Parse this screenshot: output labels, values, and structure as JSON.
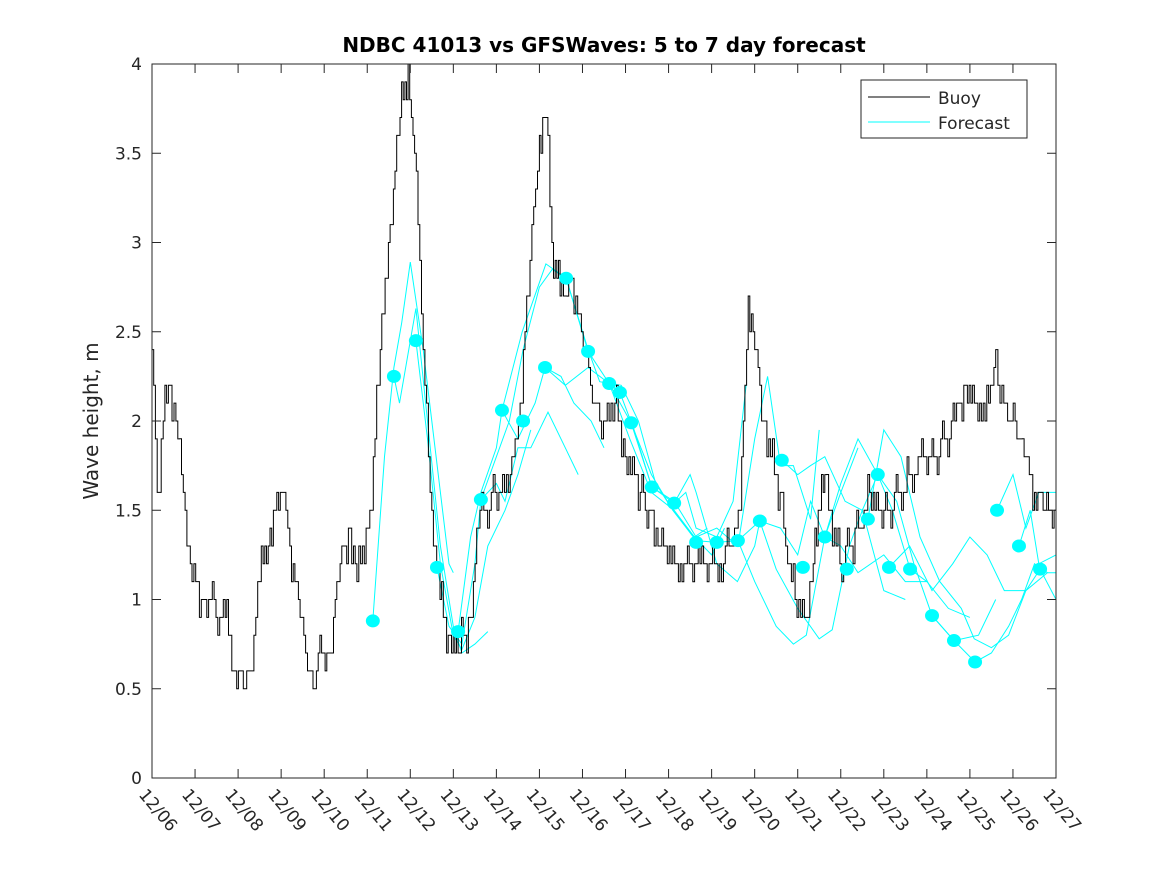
{
  "chart_data": {
    "type": "line",
    "title": "NDBC 41013 vs GFSWaves: 5 to 7 day forecast",
    "xlabel": "",
    "ylabel": "Wave height, m",
    "xlim": [
      0,
      21
    ],
    "ylim": [
      0,
      4
    ],
    "x_units": "days since 12/06",
    "x_tick_values": [
      0,
      1,
      2,
      3,
      4,
      5,
      6,
      7,
      8,
      9,
      10,
      11,
      12,
      13,
      14,
      15,
      16,
      17,
      18,
      19,
      20,
      21
    ],
    "x_tick_labels": [
      "12/06",
      "12/07",
      "12/08",
      "12/09",
      "12/10",
      "12/11",
      "12/12",
      "12/13",
      "12/14",
      "12/15",
      "12/16",
      "12/17",
      "12/18",
      "12/19",
      "12/20",
      "12/21",
      "12/22",
      "12/23",
      "12/24",
      "12/25",
      "12/26",
      "12/27"
    ],
    "y_ticks": [
      0,
      0.5,
      1,
      1.5,
      2,
      2.5,
      3,
      3.5,
      4
    ],
    "y_tick_labels": [
      "0",
      "0.5",
      "1",
      "1.5",
      "2",
      "2.5",
      "3",
      "3.5",
      "4"
    ],
    "grid": false,
    "legend": {
      "placement": "top-right",
      "entries": [
        "Buoy",
        "Forecast"
      ]
    },
    "colors": {
      "buoy": "#000000",
      "forecast": "#00FFFF"
    },
    "buoy": {
      "name": "Buoy",
      "points": [
        [
          0,
          2.37
        ],
        [
          0.12,
          1.6
        ],
        [
          0.26,
          2.0
        ],
        [
          0.42,
          2.2
        ],
        [
          0.6,
          1.9
        ],
        [
          0.77,
          1.5
        ],
        [
          0.93,
          1.1
        ],
        [
          1.23,
          1.0
        ],
        [
          1.7,
          0.9
        ],
        [
          1.93,
          0.6
        ],
        [
          2.16,
          0.5
        ],
        [
          2.28,
          0.6
        ],
        [
          2.5,
          1.1
        ],
        [
          2.74,
          1.4
        ],
        [
          3.02,
          1.6
        ],
        [
          3.2,
          1.3
        ],
        [
          3.44,
          0.9
        ],
        [
          3.74,
          0.5
        ],
        [
          3.86,
          0.7
        ],
        [
          4.14,
          0.7
        ],
        [
          4.37,
          1.2
        ],
        [
          4.6,
          1.4
        ],
        [
          4.76,
          1.1
        ],
        [
          5.06,
          1.45
        ],
        [
          5.3,
          2.4
        ],
        [
          5.53,
          3.1
        ],
        [
          5.76,
          3.7
        ],
        [
          5.95,
          4.0
        ],
        [
          6.1,
          3.45
        ],
        [
          6.22,
          2.9
        ],
        [
          6.34,
          2.2
        ],
        [
          6.5,
          1.45
        ],
        [
          6.69,
          1.0
        ],
        [
          6.92,
          0.77
        ],
        [
          7.15,
          0.72
        ],
        [
          7.39,
          0.9
        ],
        [
          7.62,
          1.45
        ],
        [
          7.97,
          1.6
        ],
        [
          8.32,
          1.67
        ],
        [
          8.55,
          2.1
        ],
        [
          8.78,
          2.85
        ],
        [
          9.0,
          3.6
        ],
        [
          9.15,
          3.7
        ],
        [
          9.29,
          3.0
        ],
        [
          9.48,
          2.7
        ],
        [
          9.76,
          2.8
        ],
        [
          10.06,
          2.35
        ],
        [
          10.4,
          1.95
        ],
        [
          10.75,
          2.1
        ],
        [
          10.99,
          1.8
        ],
        [
          11.34,
          1.6
        ],
        [
          11.62,
          1.45
        ],
        [
          11.8,
          1.3
        ],
        [
          12.27,
          1.2
        ],
        [
          12.73,
          1.15
        ],
        [
          13.19,
          1.2
        ],
        [
          13.66,
          1.45
        ],
        [
          13.85,
          2.7
        ],
        [
          14.0,
          2.4
        ],
        [
          14.24,
          1.95
        ],
        [
          14.59,
          1.55
        ],
        [
          14.94,
          1.0
        ],
        [
          15.24,
          0.87
        ],
        [
          15.4,
          1.35
        ],
        [
          15.63,
          1.65
        ],
        [
          15.98,
          1.2
        ],
        [
          16.33,
          1.35
        ],
        [
          16.67,
          1.6
        ],
        [
          17.0,
          1.45
        ],
        [
          17.37,
          1.6
        ],
        [
          17.84,
          1.75
        ],
        [
          18.2,
          1.8
        ],
        [
          18.65,
          2.0
        ],
        [
          18.9,
          2.2
        ],
        [
          19.35,
          2.0
        ],
        [
          19.6,
          2.4
        ],
        [
          19.7,
          2.1
        ],
        [
          20.05,
          2.0
        ],
        [
          20.3,
          1.75
        ],
        [
          20.5,
          1.6
        ],
        [
          20.74,
          1.5
        ],
        [
          21,
          1.5
        ]
      ]
    },
    "forecast_lines": [
      [
        [
          5.13,
          0.88
        ],
        [
          5.4,
          1.8
        ],
        [
          5.62,
          2.3
        ],
        [
          5.8,
          2.55
        ],
        [
          6.0,
          2.89
        ],
        [
          6.3,
          2.4
        ],
        [
          6.6,
          1.8
        ],
        [
          6.9,
          1.2
        ],
        [
          7.0,
          1.15
        ]
      ],
      [
        [
          5.62,
          2.25
        ],
        [
          5.75,
          2.1
        ],
        [
          6.13,
          2.63
        ],
        [
          6.4,
          2.0
        ],
        [
          6.7,
          1.3
        ],
        [
          7.0,
          0.85
        ],
        [
          7.2,
          0.7
        ],
        [
          7.5,
          0.75
        ],
        [
          7.8,
          0.82
        ]
      ],
      [
        [
          6.13,
          2.45
        ],
        [
          6.4,
          1.9
        ],
        [
          6.7,
          1.2
        ],
        [
          7.0,
          0.8
        ],
        [
          7.2,
          0.72
        ],
        [
          7.5,
          0.9
        ],
        [
          7.8,
          1.3
        ],
        [
          8.2,
          1.5
        ],
        [
          8.5,
          1.7
        ],
        [
          8.8,
          1.95
        ]
      ],
      [
        [
          6.62,
          1.18
        ],
        [
          6.9,
          0.85
        ],
        [
          7.2,
          0.75
        ],
        [
          7.5,
          1.2
        ],
        [
          7.64,
          1.56
        ],
        [
          8.0,
          1.65
        ],
        [
          8.2,
          1.55
        ],
        [
          8.5,
          1.85
        ],
        [
          8.8,
          1.85
        ],
        [
          9.2,
          2.05
        ],
        [
          9.6,
          1.85
        ],
        [
          9.9,
          1.7
        ]
      ],
      [
        [
          7.11,
          0.82
        ],
        [
          7.4,
          1.35
        ],
        [
          7.64,
          1.6
        ],
        [
          8.0,
          1.85
        ],
        [
          8.13,
          2.06
        ],
        [
          8.5,
          1.9
        ],
        [
          8.9,
          2.1
        ],
        [
          9.13,
          2.3
        ],
        [
          9.5,
          2.25
        ],
        [
          9.8,
          2.1
        ],
        [
          10.2,
          2.0
        ],
        [
          10.5,
          1.85
        ]
      ],
      [
        [
          7.64,
          1.56
        ],
        [
          8.0,
          1.8
        ],
        [
          8.3,
          2.0
        ],
        [
          8.62,
          2.4
        ],
        [
          9.0,
          2.75
        ],
        [
          9.3,
          2.85
        ],
        [
          9.62,
          2.8
        ],
        [
          10.13,
          2.4
        ],
        [
          10.4,
          2.22
        ],
        [
          10.9,
          2.2
        ],
        [
          11.3,
          2.0
        ],
        [
          11.7,
          1.65
        ],
        [
          12.1,
          1.5
        ],
        [
          12.6,
          1.35
        ],
        [
          12.9,
          1.4
        ]
      ],
      [
        [
          8.13,
          2.06
        ],
        [
          8.6,
          2.5
        ],
        [
          9.15,
          2.88
        ],
        [
          9.62,
          2.8
        ],
        [
          10.13,
          2.39
        ],
        [
          10.62,
          2.21
        ],
        [
          11.1,
          1.9
        ],
        [
          11.6,
          1.6
        ],
        [
          12.13,
          1.5
        ],
        [
          12.6,
          1.35
        ],
        [
          13.0,
          1.25
        ],
        [
          13.3,
          1.4
        ]
      ],
      [
        [
          9.13,
          2.3
        ],
        [
          9.6,
          2.2
        ],
        [
          10.13,
          2.3
        ],
        [
          10.62,
          2.21
        ],
        [
          11.13,
          1.99
        ],
        [
          11.61,
          1.63
        ],
        [
          12.13,
          1.54
        ],
        [
          12.4,
          1.6
        ],
        [
          12.64,
          1.4
        ],
        [
          13.12,
          1.35
        ],
        [
          13.5,
          1.55
        ],
        [
          13.8,
          2.2
        ]
      ],
      [
        [
          10.62,
          2.21
        ],
        [
          10.87,
          2.16
        ],
        [
          11.2,
          1.95
        ],
        [
          11.61,
          1.63
        ],
        [
          12.13,
          1.55
        ],
        [
          12.64,
          1.35
        ],
        [
          13.12,
          1.4
        ],
        [
          13.61,
          1.3
        ],
        [
          14.0,
          1.9
        ],
        [
          14.3,
          2.25
        ],
        [
          14.6,
          1.75
        ],
        [
          14.9,
          1.75
        ],
        [
          15.3,
          1.45
        ],
        [
          15.5,
          1.95
        ]
      ],
      [
        [
          11.13,
          1.99
        ],
        [
          11.6,
          1.7
        ],
        [
          12.1,
          1.5
        ],
        [
          12.64,
          1.33
        ],
        [
          13.12,
          1.32
        ],
        [
          13.61,
          1.33
        ],
        [
          14.12,
          1.44
        ],
        [
          14.6,
          1.4
        ],
        [
          15.0,
          1.25
        ],
        [
          15.3,
          1.55
        ],
        [
          15.63,
          1.35
        ],
        [
          16.0,
          1.6
        ],
        [
          16.4,
          1.85
        ]
      ],
      [
        [
          12.13,
          1.54
        ],
        [
          12.5,
          1.7
        ],
        [
          12.64,
          1.6
        ],
        [
          13.12,
          1.2
        ],
        [
          13.6,
          1.1
        ],
        [
          14.0,
          1.3
        ],
        [
          14.12,
          1.44
        ],
        [
          14.5,
          1.17
        ],
        [
          15.0,
          0.95
        ],
        [
          15.5,
          0.78
        ],
        [
          15.8,
          0.83
        ],
        [
          16.2,
          1.3
        ],
        [
          16.5,
          1.5
        ],
        [
          17.0,
          1.05
        ],
        [
          17.5,
          1.0
        ]
      ],
      [
        [
          13.61,
          1.33
        ],
        [
          14.0,
          1.1
        ],
        [
          14.5,
          0.85
        ],
        [
          14.9,
          0.75
        ],
        [
          15.2,
          0.8
        ],
        [
          15.63,
          1.35
        ],
        [
          16.0,
          1.3
        ],
        [
          16.4,
          1.15
        ],
        [
          17.0,
          1.25
        ],
        [
          17.5,
          1.1
        ],
        [
          18.0,
          1.1
        ]
      ],
      [
        [
          14.63,
          1.78
        ],
        [
          15.0,
          1.7
        ],
        [
          15.3,
          1.75
        ],
        [
          15.63,
          1.8
        ],
        [
          16.1,
          1.55
        ],
        [
          16.5,
          1.5
        ],
        [
          16.86,
          1.7
        ],
        [
          17.2,
          1.5
        ],
        [
          17.61,
          1.17
        ],
        [
          18.0,
          1.1
        ],
        [
          18.5,
          0.95
        ],
        [
          19.0,
          0.9
        ]
      ],
      [
        [
          15.63,
          1.35
        ],
        [
          16.0,
          1.65
        ],
        [
          16.4,
          1.9
        ],
        [
          16.86,
          1.7
        ],
        [
          17.3,
          1.55
        ],
        [
          17.7,
          1.2
        ],
        [
          18.12,
          0.91
        ],
        [
          18.63,
          0.77
        ],
        [
          19.2,
          0.8
        ],
        [
          19.6,
          1.0
        ]
      ],
      [
        [
          16.63,
          1.45
        ],
        [
          17.0,
          1.95
        ],
        [
          17.4,
          1.8
        ],
        [
          17.84,
          1.35
        ],
        [
          18.3,
          1.1
        ],
        [
          18.8,
          0.95
        ],
        [
          19.1,
          0.78
        ],
        [
          19.5,
          0.73
        ],
        [
          19.9,
          0.8
        ],
        [
          20.3,
          1.05
        ],
        [
          20.8,
          1.15
        ],
        [
          21,
          1.15
        ]
      ],
      [
        [
          17.12,
          1.18
        ],
        [
          17.6,
          1.3
        ],
        [
          18.12,
          1.05
        ],
        [
          18.6,
          1.2
        ],
        [
          19.0,
          1.35
        ],
        [
          19.4,
          1.25
        ],
        [
          19.8,
          1.05
        ],
        [
          20.3,
          1.05
        ],
        [
          20.63,
          1.17
        ],
        [
          21,
          1.0
        ]
      ],
      [
        [
          18.12,
          0.91
        ],
        [
          18.63,
          0.77
        ],
        [
          19.12,
          0.65
        ],
        [
          19.5,
          0.7
        ],
        [
          19.9,
          0.85
        ],
        [
          20.2,
          1.0
        ],
        [
          20.5,
          1.2
        ],
        [
          20.8,
          1.15
        ]
      ],
      [
        [
          19.63,
          1.5
        ],
        [
          20.0,
          1.7
        ],
        [
          20.3,
          1.4
        ],
        [
          20.6,
          1.6
        ],
        [
          21,
          1.6
        ]
      ],
      [
        [
          20.14,
          1.3
        ],
        [
          20.4,
          1.5
        ],
        [
          20.6,
          1.2
        ],
        [
          21,
          1.25
        ]
      ]
    ],
    "forecast_markers": [
      [
        5.13,
        0.88
      ],
      [
        5.62,
        2.25
      ],
      [
        6.13,
        2.45
      ],
      [
        6.62,
        1.18
      ],
      [
        7.11,
        0.82
      ],
      [
        7.64,
        1.56
      ],
      [
        8.13,
        2.06
      ],
      [
        8.62,
        2.0
      ],
      [
        9.13,
        2.3
      ],
      [
        9.62,
        2.8
      ],
      [
        10.13,
        2.39
      ],
      [
        10.62,
        2.21
      ],
      [
        10.87,
        2.16
      ],
      [
        11.13,
        1.99
      ],
      [
        11.61,
        1.63
      ],
      [
        12.13,
        1.54
      ],
      [
        12.64,
        1.32
      ],
      [
        13.12,
        1.32
      ],
      [
        13.61,
        1.33
      ],
      [
        14.12,
        1.44
      ],
      [
        14.63,
        1.78
      ],
      [
        15.12,
        1.18
      ],
      [
        15.63,
        1.35
      ],
      [
        16.14,
        1.17
      ],
      [
        16.63,
        1.45
      ],
      [
        16.86,
        1.7
      ],
      [
        17.12,
        1.18
      ],
      [
        17.61,
        1.17
      ],
      [
        18.12,
        0.91
      ],
      [
        18.63,
        0.77
      ],
      [
        19.12,
        0.65
      ],
      [
        19.63,
        1.5
      ],
      [
        20.14,
        1.3
      ],
      [
        20.63,
        1.17
      ]
    ]
  }
}
